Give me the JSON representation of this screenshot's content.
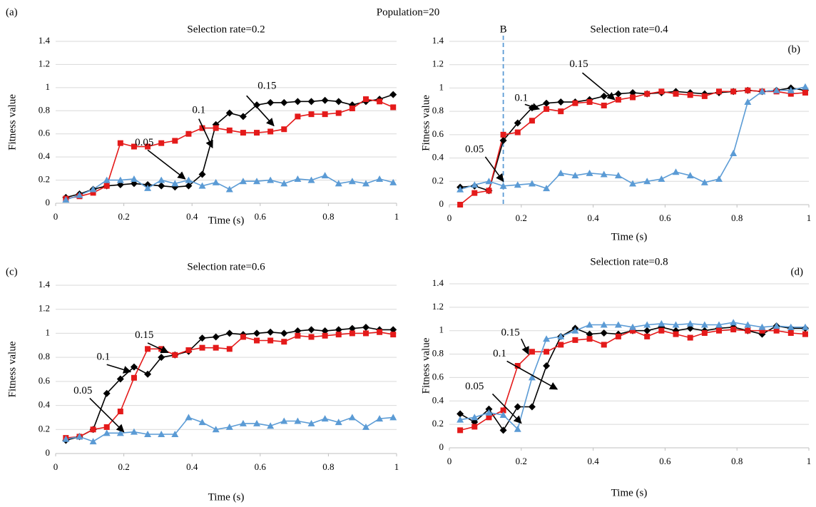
{
  "title": "Population=20",
  "chart_data": [
    {
      "type": "line",
      "panel_label": "(a)",
      "title": "Selection rate=0.2",
      "xlabel": "Time (s)",
      "ylabel": "Fitness value",
      "xlim": [
        0,
        1
      ],
      "xticks": [
        0,
        0.2,
        0.4,
        0.6,
        0.8,
        1
      ],
      "ylim": [
        0,
        1.4
      ],
      "yticks": [
        0,
        0.2,
        0.4,
        0.6,
        0.8,
        1,
        1.2,
        1.4
      ],
      "grid": true,
      "annotations": [
        "0.05",
        "0.1",
        "0.15"
      ],
      "x": [
        0.03,
        0.07,
        0.11,
        0.15,
        0.19,
        0.23,
        0.27,
        0.31,
        0.35,
        0.39,
        0.43,
        0.47,
        0.51,
        0.55,
        0.59,
        0.63,
        0.67,
        0.71,
        0.75,
        0.79,
        0.83,
        0.87,
        0.91,
        0.95,
        0.99
      ],
      "series": [
        {
          "color": "#000000",
          "marker": "diamond",
          "values": [
            0.05,
            0.08,
            0.12,
            0.15,
            0.16,
            0.17,
            0.16,
            0.15,
            0.14,
            0.15,
            0.25,
            0.68,
            0.78,
            0.75,
            0.85,
            0.87,
            0.87,
            0.88,
            0.88,
            0.89,
            0.88,
            0.85,
            0.88,
            0.9,
            0.94
          ]
        },
        {
          "color": "#e41a1a",
          "marker": "square",
          "values": [
            0.04,
            0.06,
            0.09,
            0.15,
            0.52,
            0.49,
            0.49,
            0.52,
            0.54,
            0.6,
            0.65,
            0.65,
            0.63,
            0.61,
            0.61,
            0.62,
            0.64,
            0.75,
            0.77,
            0.77,
            0.78,
            0.82,
            0.9,
            0.88,
            0.83
          ]
        },
        {
          "color": "#5b9bd5",
          "marker": "triangle",
          "values": [
            0.03,
            0.07,
            0.12,
            0.2,
            0.2,
            0.21,
            0.13,
            0.2,
            0.17,
            0.2,
            0.15,
            0.18,
            0.12,
            0.19,
            0.19,
            0.2,
            0.17,
            0.21,
            0.2,
            0.24,
            0.17,
            0.19,
            0.17,
            0.21,
            0.18
          ]
        }
      ]
    },
    {
      "type": "line",
      "panel_label": "(b)",
      "title": "Selection rate=0.4",
      "xlabel": "Time (s)",
      "ylabel": "Fitness value",
      "xlim": [
        0,
        1
      ],
      "xticks": [
        0,
        0.2,
        0.4,
        0.6,
        0.8,
        1
      ],
      "ylim": [
        0,
        1.4
      ],
      "yticks": [
        0,
        0.2,
        0.4,
        0.6,
        0.8,
        1,
        1.2,
        1.4
      ],
      "grid": true,
      "annotations": [
        "0.05",
        "0.1",
        "0.15"
      ],
      "vline": {
        "x": 0.15,
        "label": "B"
      },
      "x": [
        0.03,
        0.07,
        0.11,
        0.15,
        0.19,
        0.23,
        0.27,
        0.31,
        0.35,
        0.39,
        0.43,
        0.47,
        0.51,
        0.55,
        0.59,
        0.63,
        0.67,
        0.71,
        0.75,
        0.79,
        0.83,
        0.87,
        0.91,
        0.95,
        0.99
      ],
      "series": [
        {
          "color": "#000000",
          "marker": "diamond",
          "values": [
            0.15,
            0.16,
            0.12,
            0.55,
            0.7,
            0.83,
            0.87,
            0.88,
            0.88,
            0.9,
            0.93,
            0.95,
            0.96,
            0.95,
            0.96,
            0.97,
            0.96,
            0.95,
            0.96,
            0.97,
            0.98,
            0.97,
            0.98,
            1.0,
            0.98
          ]
        },
        {
          "color": "#e41a1a",
          "marker": "square",
          "values": [
            0.0,
            0.1,
            0.12,
            0.6,
            0.62,
            0.72,
            0.82,
            0.8,
            0.87,
            0.88,
            0.85,
            0.9,
            0.92,
            0.95,
            0.97,
            0.95,
            0.94,
            0.93,
            0.97,
            0.97,
            0.98,
            0.97,
            0.97,
            0.95,
            0.96
          ]
        },
        {
          "color": "#5b9bd5",
          "marker": "triangle",
          "values": [
            0.13,
            0.17,
            0.2,
            0.16,
            0.17,
            0.18,
            0.14,
            0.27,
            0.25,
            0.27,
            0.26,
            0.25,
            0.18,
            0.2,
            0.22,
            0.28,
            0.25,
            0.19,
            0.22,
            0.44,
            0.88,
            0.97,
            0.98,
            0.98,
            1.01
          ]
        }
      ]
    },
    {
      "type": "line",
      "panel_label": "(c)",
      "title": "Selection rate=0.6",
      "xlabel": "Time (s)",
      "ylabel": "Fitness value",
      "xlim": [
        0,
        1
      ],
      "xticks": [
        0,
        0.2,
        0.4,
        0.6,
        0.8,
        1
      ],
      "ylim": [
        0,
        1.4
      ],
      "yticks": [
        0,
        0.2,
        0.4,
        0.6,
        0.8,
        1,
        1.2,
        1.4
      ],
      "grid": true,
      "annotations": [
        "0.05",
        "0.1",
        "0.15"
      ],
      "x": [
        0.03,
        0.07,
        0.11,
        0.15,
        0.19,
        0.23,
        0.27,
        0.31,
        0.35,
        0.39,
        0.43,
        0.47,
        0.51,
        0.55,
        0.59,
        0.63,
        0.67,
        0.71,
        0.75,
        0.79,
        0.83,
        0.87,
        0.91,
        0.95,
        0.99
      ],
      "series": [
        {
          "color": "#000000",
          "marker": "diamond",
          "values": [
            0.11,
            0.14,
            0.2,
            0.5,
            0.62,
            0.72,
            0.66,
            0.8,
            0.82,
            0.85,
            0.96,
            0.97,
            1.0,
            0.99,
            1.0,
            1.01,
            1.0,
            1.02,
            1.03,
            1.02,
            1.03,
            1.04,
            1.05,
            1.03,
            1.03
          ]
        },
        {
          "color": "#e41a1a",
          "marker": "square",
          "values": [
            0.13,
            0.14,
            0.2,
            0.22,
            0.35,
            0.63,
            0.87,
            0.87,
            0.82,
            0.86,
            0.88,
            0.88,
            0.87,
            0.97,
            0.94,
            0.94,
            0.93,
            0.98,
            0.97,
            0.98,
            0.99,
            1.0,
            1.0,
            1.01,
            0.99
          ]
        },
        {
          "color": "#5b9bd5",
          "marker": "triangle",
          "values": [
            0.12,
            0.14,
            0.1,
            0.17,
            0.17,
            0.18,
            0.16,
            0.16,
            0.16,
            0.3,
            0.26,
            0.2,
            0.22,
            0.25,
            0.25,
            0.23,
            0.27,
            0.27,
            0.25,
            0.29,
            0.26,
            0.3,
            0.22,
            0.29,
            0.3
          ]
        }
      ]
    },
    {
      "type": "line",
      "panel_label": "(d)",
      "title": "Selection rate=0.8",
      "xlabel": "Time (s)",
      "ylabel": "Fitness value",
      "xlim": [
        0,
        1
      ],
      "xticks": [
        0,
        0.2,
        0.4,
        0.6,
        0.8,
        1
      ],
      "ylim": [
        0,
        1.4
      ],
      "yticks": [
        0,
        0.2,
        0.4,
        0.6,
        0.8,
        1,
        1.2,
        1.4
      ],
      "grid": true,
      "annotations": [
        "0.05",
        "0.1",
        "0.15"
      ],
      "x": [
        0.03,
        0.07,
        0.11,
        0.15,
        0.19,
        0.23,
        0.27,
        0.31,
        0.35,
        0.39,
        0.43,
        0.47,
        0.51,
        0.55,
        0.59,
        0.63,
        0.67,
        0.71,
        0.75,
        0.79,
        0.83,
        0.87,
        0.91,
        0.95,
        0.99
      ],
      "series": [
        {
          "color": "#000000",
          "marker": "diamond",
          "values": [
            0.29,
            0.22,
            0.33,
            0.15,
            0.35,
            0.35,
            0.7,
            0.95,
            1.02,
            0.97,
            0.98,
            0.97,
            1.0,
            1.0,
            1.03,
            1.0,
            1.02,
            1.0,
            1.02,
            1.03,
            1.0,
            0.97,
            1.04,
            1.02,
            1.02
          ]
        },
        {
          "color": "#e41a1a",
          "marker": "square",
          "values": [
            0.15,
            0.18,
            0.26,
            0.32,
            0.7,
            0.82,
            0.82,
            0.88,
            0.92,
            0.93,
            0.88,
            0.95,
            1.0,
            0.95,
            1.0,
            0.97,
            0.94,
            0.98,
            1.0,
            1.01,
            1.0,
            1.0,
            1.0,
            0.98,
            0.97
          ]
        },
        {
          "color": "#5b9bd5",
          "marker": "triangle",
          "values": [
            0.24,
            0.26,
            0.3,
            0.28,
            0.16,
            0.6,
            0.93,
            0.95,
            1.0,
            1.05,
            1.05,
            1.05,
            1.03,
            1.05,
            1.06,
            1.05,
            1.06,
            1.05,
            1.05,
            1.07,
            1.05,
            1.03,
            1.04,
            1.03,
            1.03
          ]
        }
      ]
    }
  ]
}
